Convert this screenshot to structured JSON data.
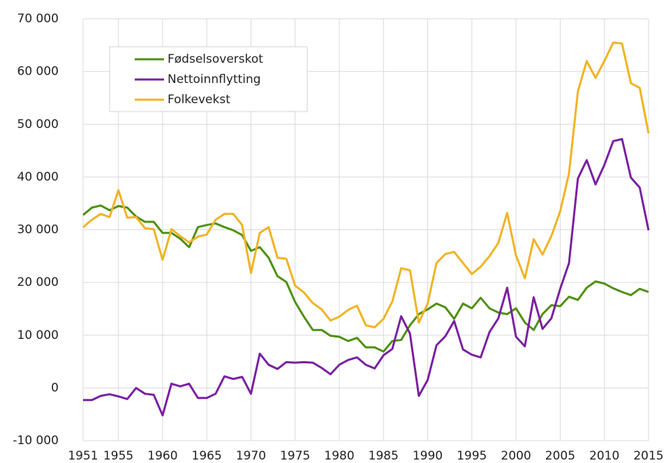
{
  "chart_data": {
    "type": "line",
    "x": [
      1951,
      1952,
      1953,
      1954,
      1955,
      1956,
      1957,
      1958,
      1959,
      1960,
      1961,
      1962,
      1963,
      1964,
      1965,
      1966,
      1967,
      1968,
      1969,
      1970,
      1971,
      1972,
      1973,
      1974,
      1975,
      1976,
      1977,
      1978,
      1979,
      1980,
      1981,
      1982,
      1983,
      1984,
      1985,
      1986,
      1987,
      1988,
      1989,
      1990,
      1991,
      1992,
      1993,
      1994,
      1995,
      1996,
      1997,
      1998,
      1999,
      2000,
      2001,
      2002,
      2003,
      2004,
      2005,
      2006,
      2007,
      2008,
      2009,
      2010,
      2011,
      2012,
      2013,
      2014,
      2015
    ],
    "series": [
      {
        "name": "Fødselsoverskot",
        "color": "#4e8f12",
        "values": [
          32800,
          34200,
          34600,
          33700,
          34500,
          34200,
          32500,
          31500,
          31500,
          29400,
          29400,
          28300,
          26700,
          30500,
          30900,
          31200,
          30500,
          29900,
          29000,
          26000,
          26700,
          24700,
          21200,
          20100,
          16300,
          13500,
          11000,
          11000,
          9900,
          9700,
          8900,
          9500,
          7700,
          7700,
          6900,
          8900,
          9100,
          11900,
          14000,
          14900,
          16000,
          15300,
          13100,
          16000,
          15100,
          17100,
          15100,
          14300,
          14000,
          15100,
          12400,
          11000,
          14000,
          15700,
          15500,
          17300,
          16700,
          19000,
          20200,
          19800,
          18900,
          18200,
          17600,
          18800,
          18200
        ]
      },
      {
        "name": "Nettoinnflytting",
        "color": "#7a1fa0",
        "values": [
          -2300,
          -2300,
          -1500,
          -1200,
          -1600,
          -2100,
          0,
          -1100,
          -1300,
          -5200,
          800,
          300,
          800,
          -1900,
          -1900,
          -1100,
          2200,
          1700,
          2100,
          -1100,
          6500,
          4400,
          3600,
          4900,
          4800,
          4900,
          4800,
          3800,
          2600,
          4400,
          5300,
          5800,
          4400,
          3700,
          6200,
          7400,
          13600,
          10300,
          -1500,
          1500,
          8100,
          9800,
          12700,
          7300,
          6300,
          5800,
          10600,
          13200,
          19000,
          9700,
          7900,
          17200,
          11200,
          13200,
          18800,
          23700,
          39700,
          43200,
          38600,
          42300,
          46800,
          47200,
          39900,
          38000,
          29900
        ]
      },
      {
        "name": "Folkevekst",
        "color": "#f0b323",
        "values": [
          30500,
          31900,
          33000,
          32400,
          37500,
          32300,
          32400,
          30300,
          30100,
          24300,
          30100,
          28800,
          27600,
          28700,
          29100,
          31900,
          33000,
          33000,
          30900,
          21800,
          29400,
          30500,
          24700,
          24500,
          19400,
          18100,
          16100,
          14900,
          12800,
          13500,
          14800,
          15600,
          11900,
          11500,
          13100,
          16400,
          22700,
          22300,
          12400,
          16000,
          23700,
          25400,
          25800,
          23700,
          21600,
          23000,
          25000,
          27500,
          33200,
          25100,
          20800,
          28200,
          25300,
          28800,
          33500,
          40700,
          56200,
          62000,
          58800,
          62000,
          65500,
          65300,
          57800,
          56900,
          48300
        ]
      }
    ],
    "xlim": [
      1951,
      2015
    ],
    "xticks": [
      1951,
      1955,
      1960,
      1965,
      1970,
      1975,
      1980,
      1985,
      1990,
      1995,
      2000,
      2005,
      2010,
      2015
    ],
    "ylim": [
      -10000,
      70000
    ],
    "yticks": [
      {
        "value": -10000,
        "label": "-10 000"
      },
      {
        "value": 0,
        "label": "0"
      },
      {
        "value": 10000,
        "label": "10 000"
      },
      {
        "value": 20000,
        "label": "20 000"
      },
      {
        "value": 30000,
        "label": "30 000"
      },
      {
        "value": 40000,
        "label": "40 000"
      },
      {
        "value": 50000,
        "label": "50 000"
      },
      {
        "value": 60000,
        "label": "60 000"
      },
      {
        "value": 70000,
        "label": "70 000"
      }
    ],
    "grid": true,
    "legend": "upper left"
  }
}
